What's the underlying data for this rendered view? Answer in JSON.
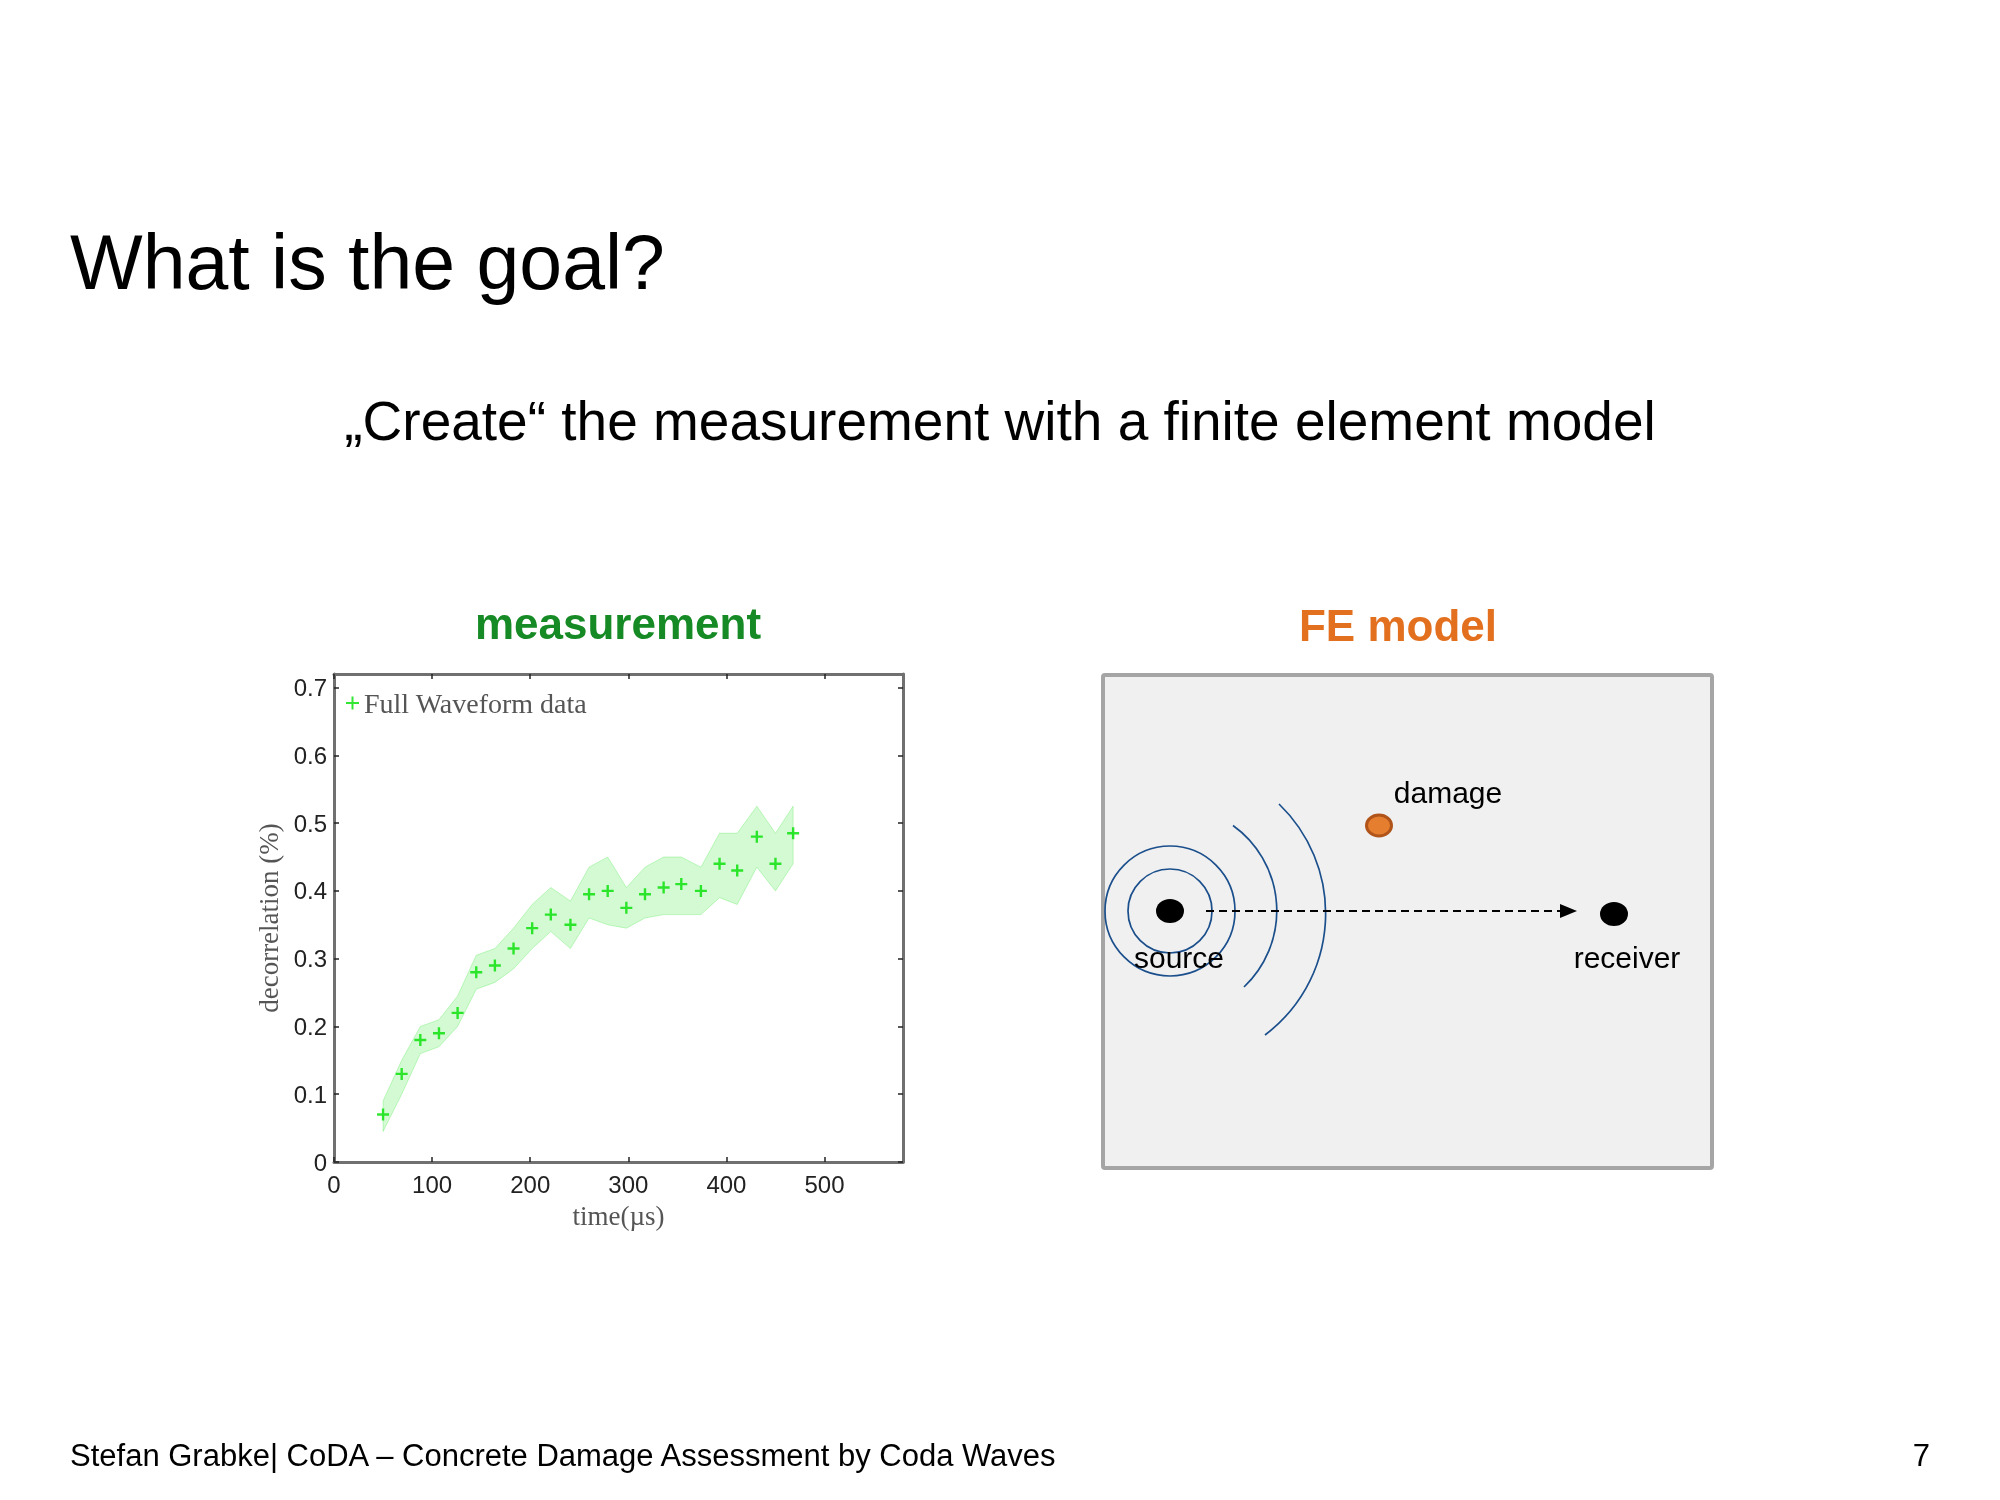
{
  "chart_data": [
    {
      "type": "other",
      "title": "What is the goal?",
      "subtitle": "„Create“ the measurement with a finite element model",
      "annotations": [
        "Stefan Grabke| CoDA – Concrete Damage Assessment by Coda Waves",
        "7"
      ]
    },
    {
      "type": "scatter",
      "title": "measurement",
      "xlabel": "time(µs)",
      "ylabel": "decorrelation (%)",
      "x": [
        50,
        69,
        88,
        107,
        126,
        145,
        164,
        183,
        202,
        221,
        241,
        260,
        279,
        298,
        317,
        336,
        354,
        374,
        393,
        411,
        431,
        450,
        468
      ],
      "series": [
        {
          "name": "Full Waveform data",
          "color": "#00e000",
          "values": [
            0.07,
            0.13,
            0.18,
            0.19,
            0.22,
            0.28,
            0.29,
            0.315,
            0.345,
            0.365,
            0.35,
            0.395,
            0.4,
            0.375,
            0.395,
            0.405,
            0.41,
            0.4,
            0.44,
            0.43,
            0.48,
            0.44,
            0.485
          ],
          "lower": [
            0.045,
            0.1,
            0.16,
            0.17,
            0.2,
            0.255,
            0.265,
            0.285,
            0.315,
            0.34,
            0.315,
            0.36,
            0.35,
            0.345,
            0.36,
            0.365,
            0.365,
            0.365,
            0.39,
            0.38,
            0.435,
            0.4,
            0.44
          ],
          "upper": [
            0.09,
            0.15,
            0.2,
            0.21,
            0.245,
            0.305,
            0.315,
            0.345,
            0.38,
            0.405,
            0.385,
            0.435,
            0.45,
            0.405,
            0.435,
            0.45,
            0.45,
            0.435,
            0.485,
            0.485,
            0.525,
            0.485,
            0.525
          ]
        }
      ],
      "xlim": [
        0,
        580
      ],
      "ylim": [
        0,
        0.72
      ],
      "xticks": [
        0,
        100,
        200,
        300,
        400,
        500
      ],
      "yticks": [
        0,
        0.1,
        0.2,
        0.3,
        0.4,
        0.5,
        0.6,
        0.7
      ],
      "marker": "cross",
      "legend": "top left"
    },
    {
      "type": "other",
      "title": "FE model",
      "annotations": [
        "damage",
        "source",
        "receiver"
      ]
    }
  ]
}
